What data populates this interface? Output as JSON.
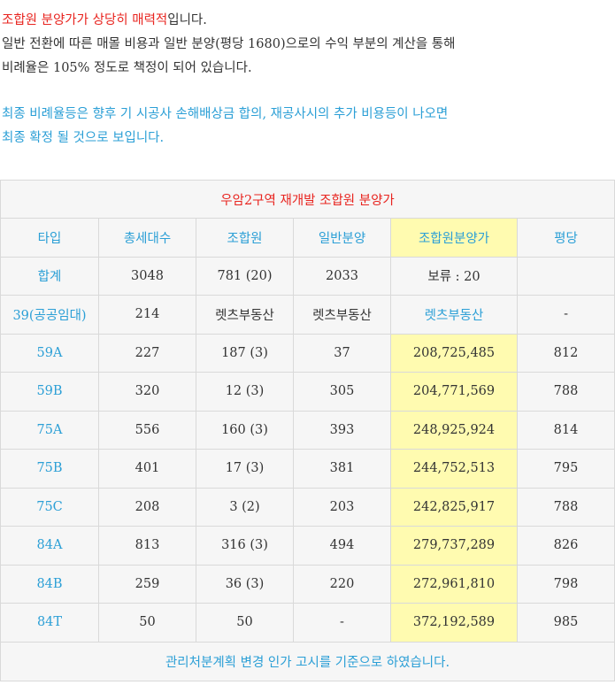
{
  "intro": {
    "highlight": "조합원 분양가가 상당히 매력적",
    "line1_rest": "입니다.",
    "line2": "일반 전환에 따른 매몰 비용과 일반 분양(평당 1680)으로의 수익 부분의 계산을 통해",
    "line3": "비례율은 105% 정도로 책정이 되어 있습니다."
  },
  "note": {
    "line1": "최종 비례율등은 향후 기 시공사 손해배상금 합의, 재공사시의 추가 비용등이 나오면",
    "line2": "최종 확정 될 것으로 보입니다."
  },
  "table": {
    "title": "우암2구역 재개발 조합원 분양가",
    "headers": [
      "타입",
      "총세대수",
      "조합원",
      "일반분양",
      "조합원분양가",
      "평당"
    ],
    "rows": [
      [
        "합계",
        "3048",
        "781 (20)",
        "2033",
        "보류 : 20",
        ""
      ],
      [
        "39(공공임대)",
        "214",
        "렛츠부동산",
        "렛츠부동산",
        "렛츠부동산",
        "-"
      ],
      [
        "59A",
        "227",
        "187 (3)",
        "37",
        "208,725,485",
        "812"
      ],
      [
        "59B",
        "320",
        "12 (3)",
        "305",
        "204,771,569",
        "788"
      ],
      [
        "75A",
        "556",
        "160 (3)",
        "393",
        "248,925,924",
        "814"
      ],
      [
        "75B",
        "401",
        "17 (3)",
        "381",
        "244,752,513",
        "795"
      ],
      [
        "75C",
        "208",
        "3 (2)",
        "203",
        "242,825,917",
        "788"
      ],
      [
        "84A",
        "813",
        "316 (3)",
        "494",
        "279,737,289",
        "826"
      ],
      [
        "84B",
        "259",
        "36 (3)",
        "220",
        "272,961,810",
        "798"
      ],
      [
        "84T",
        "50",
        "50",
        "-",
        "372,192,589",
        "985"
      ]
    ],
    "footer": "관리처분계획 변경 인가 고시를 기준으로 하였습니다."
  },
  "colors": {
    "accent_blue": "#2b9fd6",
    "accent_red": "#e8241f",
    "highlight_yellow": "#fffbb0",
    "cell_bg": "#f6f6f6"
  }
}
